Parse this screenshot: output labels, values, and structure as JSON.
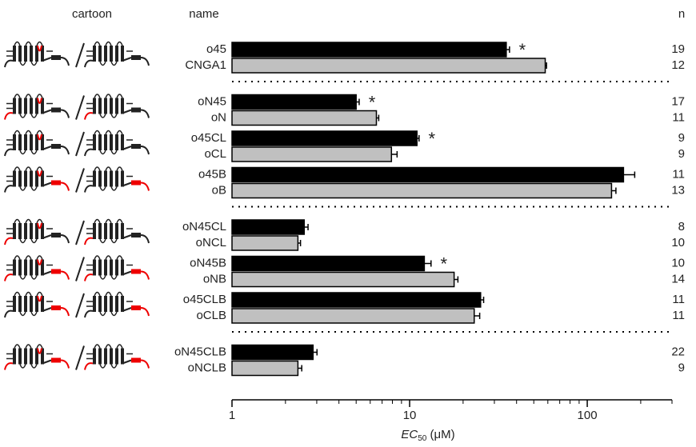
{
  "chart_data": {
    "type": "bar",
    "orientation": "horizontal",
    "log_scale": true,
    "headers": {
      "cartoon": "cartoon",
      "name": "name",
      "n": "n"
    },
    "xlabel": {
      "text": "EC",
      "subscript": "50",
      "unit": " (μM)"
    },
    "xlim": [
      1,
      300
    ],
    "xticks": [
      1,
      10,
      100
    ],
    "minor_xticks": [
      2,
      3,
      4,
      5,
      6,
      7,
      8,
      9,
      20,
      30,
      40,
      50,
      60,
      70,
      80,
      90,
      200,
      300
    ],
    "colors": {
      "test": "#000000",
      "control": "#c0c0c0"
    },
    "significance_marker": "*",
    "groups": [
      {
        "pairs": [
          {
            "test": {
              "name": "o45",
              "value": 35,
              "error": 1.5,
              "n": 19
            },
            "control": {
              "name": "CNGA1",
              "value": 58,
              "error": 1,
              "n": 12
            },
            "significant": true
          }
        ]
      },
      {
        "pairs": [
          {
            "test": {
              "name": "oN45",
              "value": 5.0,
              "error": 0.2,
              "n": 17
            },
            "control": {
              "name": "oN",
              "value": 6.5,
              "error": 0.2,
              "n": 11
            },
            "significant": true
          },
          {
            "test": {
              "name": "o45CL",
              "value": 11,
              "error": 0.3,
              "n": 9
            },
            "control": {
              "name": "oCL",
              "value": 7.9,
              "error": 0.6,
              "n": 9
            },
            "significant": true
          },
          {
            "test": {
              "name": "o45B",
              "value": 160,
              "error": 25,
              "n": 11
            },
            "control": {
              "name": "oB",
              "value": 137,
              "error": 8,
              "n": 13
            },
            "significant": false
          }
        ]
      },
      {
        "pairs": [
          {
            "test": {
              "name": "oN45CL",
              "value": 2.55,
              "error": 0.13,
              "n": 8
            },
            "control": {
              "name": "oNCL",
              "value": 2.35,
              "error": 0.08,
              "n": 10
            },
            "significant": false
          },
          {
            "test": {
              "name": "oN45B",
              "value": 12.1,
              "error": 1.1,
              "n": 10
            },
            "control": {
              "name": "oNB",
              "value": 17.8,
              "error": 0.9,
              "n": 14
            },
            "significant": true
          },
          {
            "test": {
              "name": "o45CLB",
              "value": 25.1,
              "error": 1,
              "n": 11
            },
            "control": {
              "name": "oCLB",
              "value": 23.1,
              "error": 1.7,
              "n": 11
            },
            "significant": false
          }
        ]
      },
      {
        "pairs": [
          {
            "test": {
              "name": "oN45CLB",
              "value": 2.86,
              "error": 0.15,
              "n": 22
            },
            "control": {
              "name": "oNCLB",
              "value": 2.35,
              "error": 0.12,
              "n": 9
            },
            "significant": false
          }
        ]
      }
    ]
  }
}
